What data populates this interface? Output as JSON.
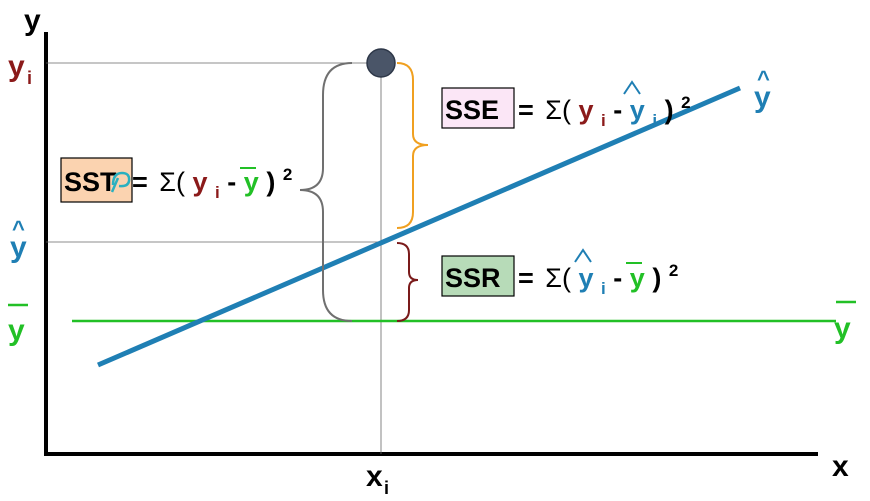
{
  "axes": {
    "y_label": "y",
    "x_label": "x"
  },
  "y_ticks": {
    "yi": {
      "base": "y",
      "sub": "i"
    },
    "yhat": {
      "base": "y",
      "accent": "^"
    },
    "ybar": {
      "base": "y",
      "accent": "‾"
    }
  },
  "x_tick": {
    "base": "x",
    "sub": "i"
  },
  "line_labels": {
    "regression": {
      "base": "y",
      "accent": "^"
    },
    "mean": {
      "base": "y",
      "accent": "‾"
    }
  },
  "formulas": {
    "sst": {
      "box": "SST",
      "eq": "=",
      "sigma": "Σ(",
      "t1": "y",
      "t1_sub": "i",
      "minus": " - ",
      "t2": "y",
      "close": ")",
      "exp": "2"
    },
    "sse": {
      "box": "SSE",
      "eq": "=",
      "sigma": "Σ(",
      "t1": "y",
      "t1_sub": "i",
      "minus": " - ",
      "t2": "y",
      "t2_sub": "i",
      "close": ")",
      "exp": "2"
    },
    "ssr": {
      "box": "SSR",
      "eq": "=",
      "sigma": "Σ(",
      "t1": "y",
      "t1_sub": "i",
      "minus": " - ",
      "t2": "y",
      "close": ")",
      "exp": "2"
    }
  },
  "colors": {
    "axis": "#000000",
    "regression_line": "#1f7fb4",
    "mean_line": "#22c026",
    "yi_label": "#8b1a1a",
    "yhat_label": "#1f7fb4",
    "ybar_label": "#22c026",
    "sst_brace": "#707070",
    "sse_brace": "#f0a020",
    "ssr_brace": "#7a1a1a",
    "point": "#4a5568",
    "sst_box": "#fbd3b0",
    "sse_box": "#fbe6f6",
    "ssr_box": "#b7dbb8"
  }
}
